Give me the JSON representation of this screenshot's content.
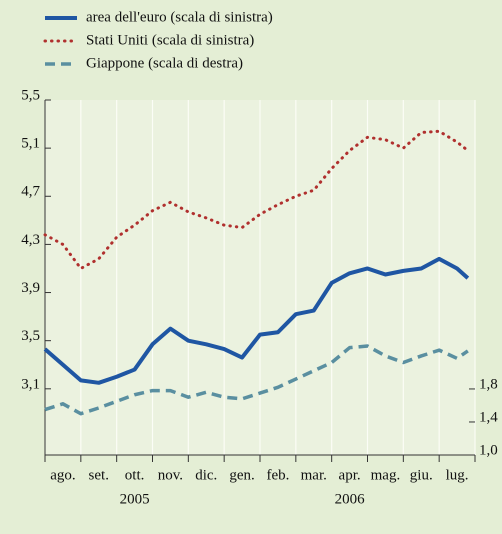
{
  "chart_data": {
    "type": "line",
    "categories": [
      "ago.",
      "set.",
      "ott.",
      "nov.",
      "dic.",
      "gen.",
      "feb.",
      "mar.",
      "apr.",
      "mag.",
      "giu.",
      "lug."
    ],
    "years": [
      "2005",
      "2006"
    ],
    "x": [
      0,
      0.5,
      1,
      1.5,
      2,
      2.5,
      3,
      3.5,
      4,
      4.5,
      5,
      5.5,
      6,
      6.5,
      7,
      7.5,
      8,
      8.5,
      9,
      9.5,
      10,
      10.5,
      11,
      11.5,
      11.8
    ],
    "xlim": [
      0,
      12
    ],
    "xticks": [
      {
        "value": 0,
        "label": ""
      },
      {
        "value": 1,
        "label": ""
      },
      {
        "value": 2,
        "label": ""
      },
      {
        "value": 3,
        "label": ""
      },
      {
        "value": 4,
        "label": ""
      },
      {
        "value": 5,
        "label": ""
      },
      {
        "value": 6,
        "label": ""
      },
      {
        "value": 7,
        "label": ""
      },
      {
        "value": 8,
        "label": ""
      },
      {
        "value": 9,
        "label": ""
      },
      {
        "value": 10,
        "label": ""
      },
      {
        "value": 11,
        "label": ""
      },
      {
        "value": 12,
        "label": ""
      }
    ],
    "ylim": [
      2.55,
      5.5
    ],
    "yticks": [
      {
        "value": 3.1,
        "label": "3,1"
      },
      {
        "value": 3.5,
        "label": "3,5"
      },
      {
        "value": 3.9,
        "label": "3,9"
      },
      {
        "value": 4.3,
        "label": "4,3"
      },
      {
        "value": 4.7,
        "label": "4,7"
      },
      {
        "value": 5.1,
        "label": "5,1"
      },
      {
        "value": 5.5,
        "label": "5,5"
      }
    ],
    "y2lim": [
      1.0,
      5.3
    ],
    "y2ticks": [
      {
        "value": 1.0,
        "label": "1,0"
      },
      {
        "value": 1.4,
        "label": "1,4"
      },
      {
        "value": 1.8,
        "label": "1,8"
      }
    ],
    "grid": true,
    "series": [
      {
        "name": "area dell'euro (scala di sinistra)",
        "color": "#1f56a3",
        "style": "solid",
        "values": [
          3.43,
          3.3,
          3.17,
          3.15,
          3.2,
          3.26,
          3.47,
          3.6,
          3.5,
          3.47,
          3.43,
          3.36,
          3.55,
          3.57,
          3.72,
          3.75,
          3.98,
          4.06,
          4.1,
          4.05,
          4.08,
          4.1,
          4.18,
          4.1,
          4.02
        ]
      },
      {
        "name": "Stati Uniti (scala di sinistra)",
        "color": "#b0302e",
        "style": "dotted",
        "values": [
          4.38,
          4.3,
          4.1,
          4.18,
          4.36,
          4.46,
          4.58,
          4.65,
          4.57,
          4.52,
          4.46,
          4.44,
          4.55,
          4.63,
          4.7,
          4.75,
          4.93,
          5.08,
          5.19,
          5.17,
          5.1,
          5.23,
          5.24,
          5.15,
          5.08
        ]
      },
      {
        "name": "Giappone (scala di destra)",
        "color": "#5a8fa0",
        "style": "dashed",
        "axis": "y2",
        "values": [
          1.55,
          1.62,
          1.5,
          1.57,
          1.65,
          1.73,
          1.78,
          1.78,
          1.7,
          1.76,
          1.7,
          1.68,
          1.75,
          1.82,
          1.92,
          2.02,
          2.12,
          2.3,
          2.32,
          2.2,
          2.12,
          2.2,
          2.27,
          2.17,
          2.26
        ]
      }
    ]
  }
}
